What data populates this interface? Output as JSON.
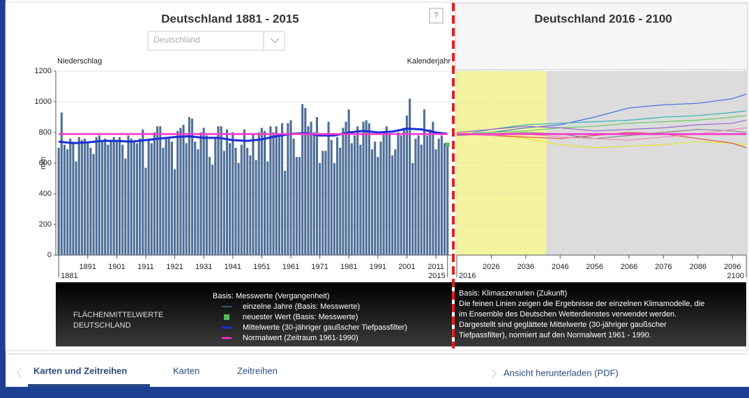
{
  "header": {
    "left_title": "Deutschland 1881 - 2015",
    "right_title": "Deutschland 2016 - 2100",
    "dropdown": "Deutschland",
    "help": "?"
  },
  "chart_data": [
    {
      "type": "bar",
      "title": "Deutschland 1881 - 2015",
      "y_label_top": "Niederschlag",
      "x_label_top": "Kalenderjahr",
      "y_label": "mm",
      "xlim": [
        1880,
        2017
      ],
      "ylim": [
        0,
        1200
      ],
      "yticks": [
        0,
        200,
        400,
        600,
        800,
        1000,
        1200
      ],
      "grid": true,
      "xticks": [
        1891,
        1901,
        1911,
        1921,
        1931,
        1941,
        1951,
        1961,
        1971,
        1981,
        1991,
        2001,
        2011
      ],
      "range_labels": [
        1881,
        2015
      ],
      "series": [
        {
          "name": "einzelne Jahre (Basis: Messwerte)",
          "type": "bar",
          "color": "#4f6f98",
          "x": [
            1881,
            1882,
            1883,
            1884,
            1885,
            1886,
            1887,
            1888,
            1889,
            1890,
            1891,
            1892,
            1893,
            1894,
            1895,
            1896,
            1897,
            1898,
            1899,
            1900,
            1901,
            1902,
            1903,
            1904,
            1905,
            1906,
            1907,
            1908,
            1909,
            1910,
            1911,
            1912,
            1913,
            1914,
            1915,
            1916,
            1917,
            1918,
            1919,
            1920,
            1921,
            1922,
            1923,
            1924,
            1925,
            1926,
            1927,
            1928,
            1929,
            1930,
            1931,
            1932,
            1933,
            1934,
            1935,
            1936,
            1937,
            1938,
            1939,
            1940,
            1941,
            1942,
            1943,
            1944,
            1945,
            1946,
            1947,
            1948,
            1949,
            1950,
            1951,
            1952,
            1953,
            1954,
            1955,
            1956,
            1957,
            1958,
            1959,
            1960,
            1961,
            1962,
            1963,
            1964,
            1965,
            1966,
            1967,
            1968,
            1969,
            1970,
            1971,
            1972,
            1973,
            1974,
            1975,
            1976,
            1977,
            1978,
            1979,
            1980,
            1981,
            1982,
            1983,
            1984,
            1985,
            1986,
            1987,
            1988,
            1989,
            1990,
            1991,
            1992,
            1993,
            1994,
            1995,
            1996,
            1997,
            1998,
            1999,
            2000,
            2001,
            2002,
            2003,
            2004,
            2005,
            2006,
            2007,
            2008,
            2009,
            2010,
            2011,
            2012,
            2013,
            2014,
            2015
          ],
          "values": [
            700,
            930,
            720,
            690,
            760,
            740,
            610,
            770,
            750,
            760,
            730,
            700,
            660,
            770,
            780,
            750,
            760,
            720,
            750,
            770,
            740,
            770,
            720,
            630,
            780,
            760,
            740,
            730,
            760,
            820,
            570,
            760,
            730,
            800,
            840,
            840,
            700,
            770,
            760,
            740,
            560,
            810,
            830,
            850,
            730,
            900,
            890,
            740,
            690,
            800,
            830,
            780,
            640,
            590,
            760,
            840,
            840,
            680,
            820,
            730,
            800,
            700,
            600,
            720,
            820,
            700,
            650,
            790,
            620,
            800,
            830,
            810,
            610,
            840,
            800,
            840,
            780,
            860,
            550,
            860,
            880,
            760,
            640,
            640,
            985,
            960,
            840,
            870,
            800,
            900,
            600,
            680,
            680,
            870,
            750,
            600,
            770,
            700,
            830,
            870,
            950,
            730,
            780,
            840,
            720,
            870,
            880,
            860,
            690,
            740,
            640,
            740,
            800,
            840,
            790,
            650,
            690,
            800,
            780,
            830,
            910,
            1020,
            600,
            760,
            780,
            720,
            950,
            780,
            820,
            870,
            690,
            760,
            780,
            730,
            720
          ]
        },
        {
          "name": "neuester Wert (Basis: Messwerte)",
          "type": "point",
          "color": "#5cb85c",
          "x": [
            2015
          ],
          "values": [
            720
          ]
        },
        {
          "name": "Mittelwerte (30-jähriger gaußscher Tiefpassfilter)",
          "type": "line",
          "color": "#1a2fd6",
          "width": 3,
          "x": [
            1881,
            1886,
            1891,
            1896,
            1901,
            1906,
            1911,
            1916,
            1921,
            1926,
            1931,
            1936,
            1941,
            1946,
            1951,
            1956,
            1961,
            1966,
            1971,
            1976,
            1981,
            1986,
            1991,
            1996,
            2001,
            2006,
            2011,
            2015
          ],
          "values": [
            740,
            730,
            735,
            745,
            745,
            740,
            750,
            760,
            770,
            775,
            765,
            765,
            750,
            745,
            755,
            775,
            790,
            795,
            780,
            780,
            800,
            810,
            800,
            805,
            825,
            820,
            800,
            790
          ]
        },
        {
          "name": "Normalwert (Zeitraum 1961-1990)",
          "type": "line",
          "color": "#ff33cc",
          "width": 2.5,
          "x": [
            1881,
            2015
          ],
          "values": [
            789,
            789
          ]
        }
      ],
      "legend": {
        "region": [
          "FLÄCHENMITTELWERTE",
          "DEUTSCHLAND"
        ],
        "title": "Basis: Messwerte (Vergangenheit)"
      }
    },
    {
      "type": "line",
      "title": "Deutschland 2016 - 2100",
      "xlim": [
        2016,
        2100
      ],
      "ylim": [
        0,
        1200
      ],
      "yticks": [
        0,
        200,
        400,
        600,
        800,
        1000,
        1200
      ],
      "grid": true,
      "xticks": [
        2026,
        2036,
        2046,
        2056,
        2066,
        2076,
        2086,
        2096
      ],
      "range_labels": [
        2016,
        2100
      ],
      "highlight": [
        2016,
        2042
      ],
      "highlight_color": "#f3f3a0",
      "background": "#dcdcdc",
      "series": [
        {
          "color": "#4a6fe0",
          "x": [
            2016,
            2026,
            2036,
            2046,
            2056,
            2066,
            2076,
            2086,
            2096,
            2100
          ],
          "values": [
            790,
            800,
            830,
            850,
            900,
            960,
            980,
            990,
            1020,
            1050
          ]
        },
        {
          "color": "#33b5b5",
          "x": [
            2016,
            2026,
            2036,
            2046,
            2056,
            2066,
            2076,
            2086,
            2096,
            2100
          ],
          "values": [
            780,
            820,
            850,
            860,
            870,
            880,
            900,
            910,
            930,
            940
          ]
        },
        {
          "color": "#66cc66",
          "x": [
            2016,
            2026,
            2036,
            2046,
            2056,
            2066,
            2076,
            2086,
            2096,
            2100
          ],
          "values": [
            790,
            800,
            810,
            830,
            840,
            860,
            870,
            880,
            900,
            910
          ]
        },
        {
          "color": "#e6e633",
          "x": [
            2016,
            2026,
            2036,
            2046,
            2056,
            2066,
            2076,
            2086,
            2096,
            2100
          ],
          "values": [
            800,
            790,
            760,
            720,
            700,
            710,
            720,
            740,
            730,
            720
          ]
        },
        {
          "color": "#e05050",
          "x": [
            2016,
            2026,
            2036,
            2046,
            2056,
            2066,
            2076,
            2086,
            2096,
            2100
          ],
          "values": [
            790,
            780,
            770,
            760,
            780,
            800,
            790,
            760,
            730,
            700
          ]
        },
        {
          "color": "#9966cc",
          "x": [
            2016,
            2026,
            2036,
            2046,
            2056,
            2066,
            2076,
            2086,
            2096,
            2100
          ],
          "values": [
            800,
            820,
            840,
            830,
            810,
            820,
            830,
            850,
            860,
            880
          ]
        },
        {
          "color": "#888888",
          "x": [
            2016,
            2026,
            2036,
            2046,
            2056,
            2066,
            2076,
            2086,
            2096,
            2100
          ],
          "values": [
            780,
            790,
            800,
            790,
            760,
            780,
            800,
            820,
            810,
            800
          ]
        },
        {
          "color": "#f08ac0",
          "x": [
            2016,
            2026,
            2036,
            2046,
            2056,
            2066,
            2076,
            2086,
            2096,
            2100
          ],
          "values": [
            790,
            780,
            790,
            770,
            760,
            750,
            770,
            790,
            820,
            830
          ]
        },
        {
          "color": "#ff33cc",
          "width": 2.5,
          "x": [
            2016,
            2100
          ],
          "values": [
            789,
            789
          ]
        }
      ],
      "notes": [
        "Basis: Klimaszenarien (Zukunft)",
        "Die feinen Linien zeigen die Ergebnisse der einzelnen Klimamodelle, die",
        "im Ensemble des Deutschen Wetterdienstes verwendet werden.",
        "Dargestellt sind geglättete Mittelwerte (30-jähriger gaußscher",
        "Tiefpassfilter), normiert auf den Normalwert 1961 - 1990."
      ]
    }
  ],
  "tabs": [
    "Karten und Zeitreihen",
    "Karten",
    "Zeitreihen"
  ],
  "download": "Ansicht herunterladen (PDF)"
}
